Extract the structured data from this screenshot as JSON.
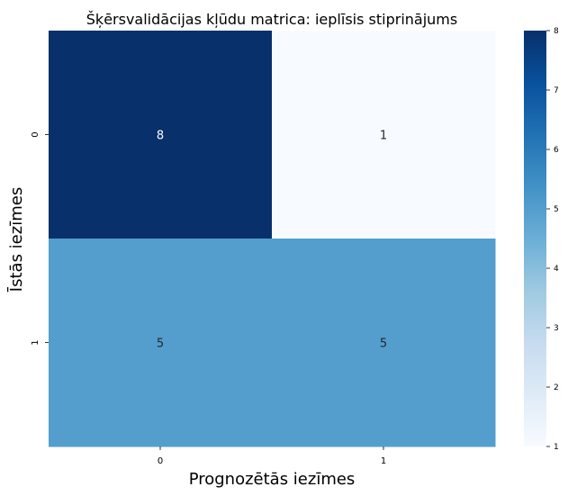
{
  "chart_data": {
    "type": "heatmap",
    "title": "Šķērsvalidācijas kļūdu matrica: ieplīsis stiprinājums",
    "xlabel": "Prognozētās iezīmes",
    "ylabel": "Īstās iezīmes",
    "x_categories": [
      "0",
      "1"
    ],
    "y_categories": [
      "0",
      "1"
    ],
    "values": [
      [
        8,
        1
      ],
      [
        5,
        5
      ]
    ],
    "colorbar": {
      "range": [
        1,
        8
      ],
      "ticks": [
        "1",
        "2",
        "3",
        "4",
        "5",
        "6",
        "7",
        "8"
      ]
    },
    "colormap": "Blues",
    "colors": {
      "low": "#f7fbff",
      "high": "#08306b"
    }
  }
}
